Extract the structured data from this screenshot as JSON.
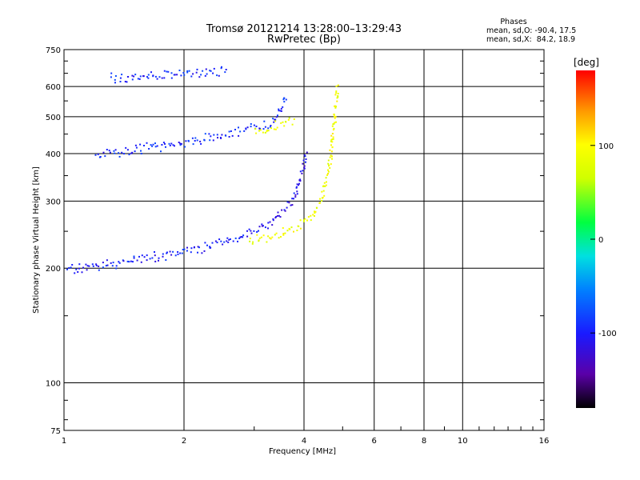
{
  "chart_data": {
    "type": "scatter",
    "title": "Tromsø 20121214 13:28:00–13:29:43",
    "subtitle": "RwPretec (Bp)",
    "stats": {
      "heading": "Phases",
      "line_o": "mean, sd,O: -90.4, 17.5",
      "line_x": "mean, sd,X:  84.2, 18.9"
    },
    "xlabel": "Frequency [MHz]",
    "ylabel": "Stationary phase Virtual Height [km]",
    "x_scale": "log",
    "y_scale": "log",
    "xlim": [
      1,
      16
    ],
    "ylim": [
      75,
      750
    ],
    "x_ticks": [
      1,
      2,
      4,
      6,
      8,
      10,
      16
    ],
    "x_tick_labels": [
      "1",
      "2",
      "4",
      "6",
      "8",
      "10",
      "16"
    ],
    "y_ticks": [
      75,
      100,
      200,
      300,
      400,
      500,
      600,
      750
    ],
    "y_tick_labels": [
      "75",
      "100",
      "200",
      "300",
      "400",
      "500",
      "600",
      "750"
    ],
    "grid": true,
    "colorbar": {
      "label": "[deg]",
      "range": [
        -180,
        180
      ],
      "ticks": [
        100,
        0,
        -100
      ],
      "tick_labels": [
        "100",
        "0",
        "-100"
      ]
    },
    "series": [
      {
        "description": "O-trace F-layer lower branch",
        "phase_deg": -100,
        "points": [
          [
            1.0,
            198
          ],
          [
            1.05,
            197
          ],
          [
            1.1,
            199
          ],
          [
            1.2,
            201
          ],
          [
            1.3,
            203
          ],
          [
            1.4,
            206
          ],
          [
            1.5,
            208
          ],
          [
            1.6,
            211
          ],
          [
            1.8,
            215
          ],
          [
            2.0,
            219
          ],
          [
            2.2,
            223
          ],
          [
            2.5,
            231
          ],
          [
            2.7,
            236
          ],
          [
            2.9,
            243
          ]
        ]
      },
      {
        "description": "O-trace upper branch",
        "phase_deg": -110,
        "points": [
          [
            2.9,
            244
          ],
          [
            3.1,
            252
          ],
          [
            3.3,
            262
          ],
          [
            3.5,
            276
          ],
          [
            3.7,
            295
          ],
          [
            3.85,
            322
          ],
          [
            3.95,
            360
          ],
          [
            4.05,
            400
          ]
        ]
      },
      {
        "description": "X-trace",
        "phase_deg": 90,
        "points": [
          [
            2.9,
            232
          ],
          [
            3.2,
            238
          ],
          [
            3.5,
            244
          ],
          [
            3.8,
            252
          ],
          [
            4.0,
            262
          ],
          [
            4.2,
            276
          ],
          [
            4.4,
            300
          ],
          [
            4.55,
            340
          ],
          [
            4.65,
            390
          ],
          [
            4.72,
            450
          ],
          [
            4.78,
            520
          ],
          [
            4.82,
            600
          ]
        ]
      },
      {
        "description": "Multi-hop trace",
        "phase_deg": -95,
        "points": [
          [
            1.2,
            395
          ],
          [
            1.4,
            403
          ],
          [
            1.6,
            410
          ],
          [
            1.9,
            420
          ],
          [
            2.2,
            430
          ],
          [
            2.6,
            448
          ],
          [
            2.8,
            455
          ],
          [
            3.2,
            470
          ],
          [
            3.45,
            505
          ],
          [
            3.6,
            560
          ]
        ]
      },
      {
        "description": "Multi-hop X-trace",
        "phase_deg": 85,
        "points": [
          [
            3.0,
            455
          ],
          [
            3.2,
            460
          ],
          [
            3.5,
            470
          ],
          [
            3.8,
            480
          ]
        ]
      },
      {
        "description": "Upper echoes",
        "phase_deg": -95,
        "points": [
          [
            1.3,
            625
          ],
          [
            1.45,
            630
          ],
          [
            1.6,
            632
          ],
          [
            1.8,
            636
          ],
          [
            2.0,
            640
          ],
          [
            2.2,
            645
          ],
          [
            2.55,
            652
          ]
        ]
      }
    ]
  }
}
